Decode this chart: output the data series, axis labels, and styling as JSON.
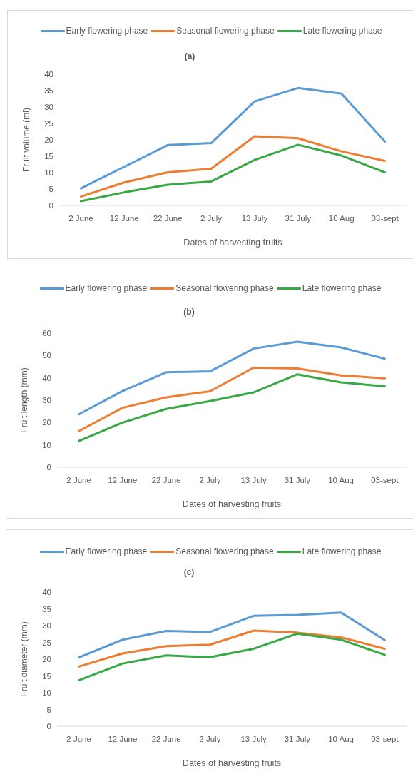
{
  "chart_data": [
    {
      "type": "line",
      "title": "(a)",
      "xlabel": "Dates of harvesting fruits",
      "ylabel": "Fruit volume (ml)",
      "legend": "top",
      "categories": [
        "2 June",
        "12 June",
        "22 June",
        "2 July",
        "13 July",
        "31 July",
        "10 Aug",
        "03-sept"
      ],
      "ylim": [
        0,
        40
      ],
      "yticks": [
        0,
        5,
        10,
        15,
        20,
        25,
        30,
        35,
        40
      ],
      "series": [
        {
          "name": "Early flowering phase",
          "color": "#5b9bd5",
          "values": [
            5.2,
            11.8,
            18.4,
            19.0,
            31.7,
            35.8,
            34.1,
            19.5
          ]
        },
        {
          "name": "Seasonal flowering phase",
          "color": "#ed7d31",
          "values": [
            2.7,
            7.0,
            10.1,
            11.2,
            21.1,
            20.5,
            16.5,
            13.6
          ]
        },
        {
          "name": "Late flowering phase",
          "color": "#38a845",
          "values": [
            1.3,
            4.0,
            6.3,
            7.3,
            13.9,
            18.5,
            15.2,
            10.1
          ]
        }
      ]
    },
    {
      "type": "line",
      "title": "(b)",
      "xlabel": "Dates of harvesting fruits",
      "ylabel": "Fruit length (mm)",
      "legend": "top",
      "categories": [
        "2 June",
        "12 June",
        "22 June",
        "2 July",
        "13 July",
        "31 July",
        "10 Aug",
        "03-sept"
      ],
      "ylim": [
        0,
        60
      ],
      "yticks": [
        0,
        10,
        20,
        30,
        40,
        50,
        60
      ],
      "series": [
        {
          "name": "Early flowering phase",
          "color": "#5b9bd5",
          "values": [
            23.7,
            34.1,
            42.5,
            42.9,
            53.1,
            56.2,
            53.6,
            48.6
          ]
        },
        {
          "name": "Seasonal flowering phase",
          "color": "#ed7d31",
          "values": [
            16.2,
            26.6,
            31.3,
            34.0,
            44.6,
            44.2,
            41.1,
            39.8
          ]
        },
        {
          "name": "Late flowering phase",
          "color": "#38a845",
          "values": [
            11.8,
            20.0,
            26.1,
            29.6,
            33.5,
            41.6,
            38.0,
            36.2
          ]
        }
      ]
    },
    {
      "type": "line",
      "title": "(c)",
      "xlabel": "Dates of harvesting fruits",
      "ylabel": "Fruit diameter (mm)",
      "legend": "top",
      "categories": [
        "2 June",
        "12 June",
        "22 June",
        "2 July",
        "13 July",
        "31 July",
        "10 Aug",
        "03-sept"
      ],
      "ylim": [
        0,
        40
      ],
      "yticks": [
        0,
        5,
        10,
        15,
        20,
        25,
        30,
        35,
        40
      ],
      "series": [
        {
          "name": "Early flowering phase",
          "color": "#5b9bd5",
          "values": [
            20.5,
            25.8,
            28.4,
            28.1,
            32.9,
            33.2,
            33.9,
            25.7
          ]
        },
        {
          "name": "Seasonal flowering phase",
          "color": "#ed7d31",
          "values": [
            17.8,
            21.7,
            23.9,
            24.3,
            28.5,
            27.9,
            26.5,
            23.1
          ]
        },
        {
          "name": "Late flowering phase",
          "color": "#38a845",
          "values": [
            13.7,
            18.7,
            21.1,
            20.6,
            23.1,
            27.6,
            25.8,
            21.3
          ]
        }
      ]
    }
  ]
}
